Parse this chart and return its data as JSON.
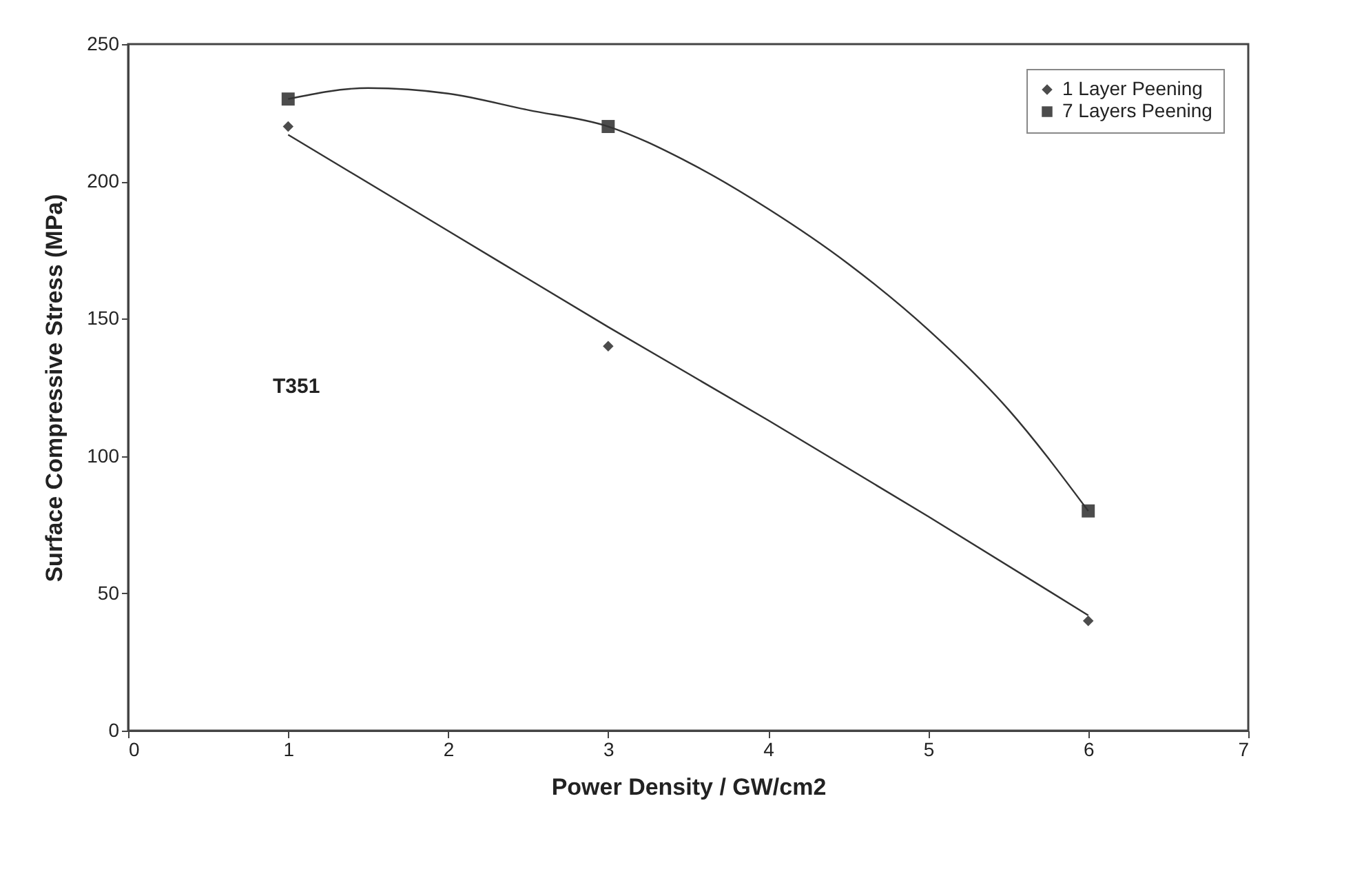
{
  "chart_data": {
    "type": "scatter",
    "xlabel": "Power Density  / GW/cm2",
    "ylabel": "Surface Compressive Stress  (MPa)",
    "annotations": [
      "T351"
    ],
    "x": [
      1,
      3,
      6
    ],
    "series": [
      {
        "name": "1 Layer Peening",
        "color": "#000000",
        "marker": "diamond",
        "values": [
          220,
          140,
          40
        ]
      },
      {
        "name": "7 Layers Peening",
        "color": "#000000",
        "marker": "square",
        "values": [
          230,
          220,
          80
        ]
      },
      {
        "type": "line",
        "color": "#333333",
        "x": [
          1,
          2,
          3,
          4,
          5,
          6
        ],
        "values": [
          217,
          182,
          147,
          113,
          78,
          42
        ]
      },
      {
        "type": "line",
        "color": "#333333",
        "x": [
          1,
          1.5,
          2,
          2.5,
          3,
          3.5,
          4,
          4.5,
          5,
          5.5,
          6
        ],
        "values": [
          230,
          234,
          232,
          226,
          220,
          207,
          190,
          170,
          146,
          117,
          80
        ]
      }
    ],
    "xlim": [
      0,
      7
    ],
    "xticks": [
      0,
      1,
      2,
      3,
      4,
      5,
      6,
      7
    ],
    "ylim": [
      0,
      250
    ],
    "yticks": [
      0,
      50,
      100,
      150,
      200,
      250
    ],
    "grid": false,
    "legend": "top right"
  }
}
